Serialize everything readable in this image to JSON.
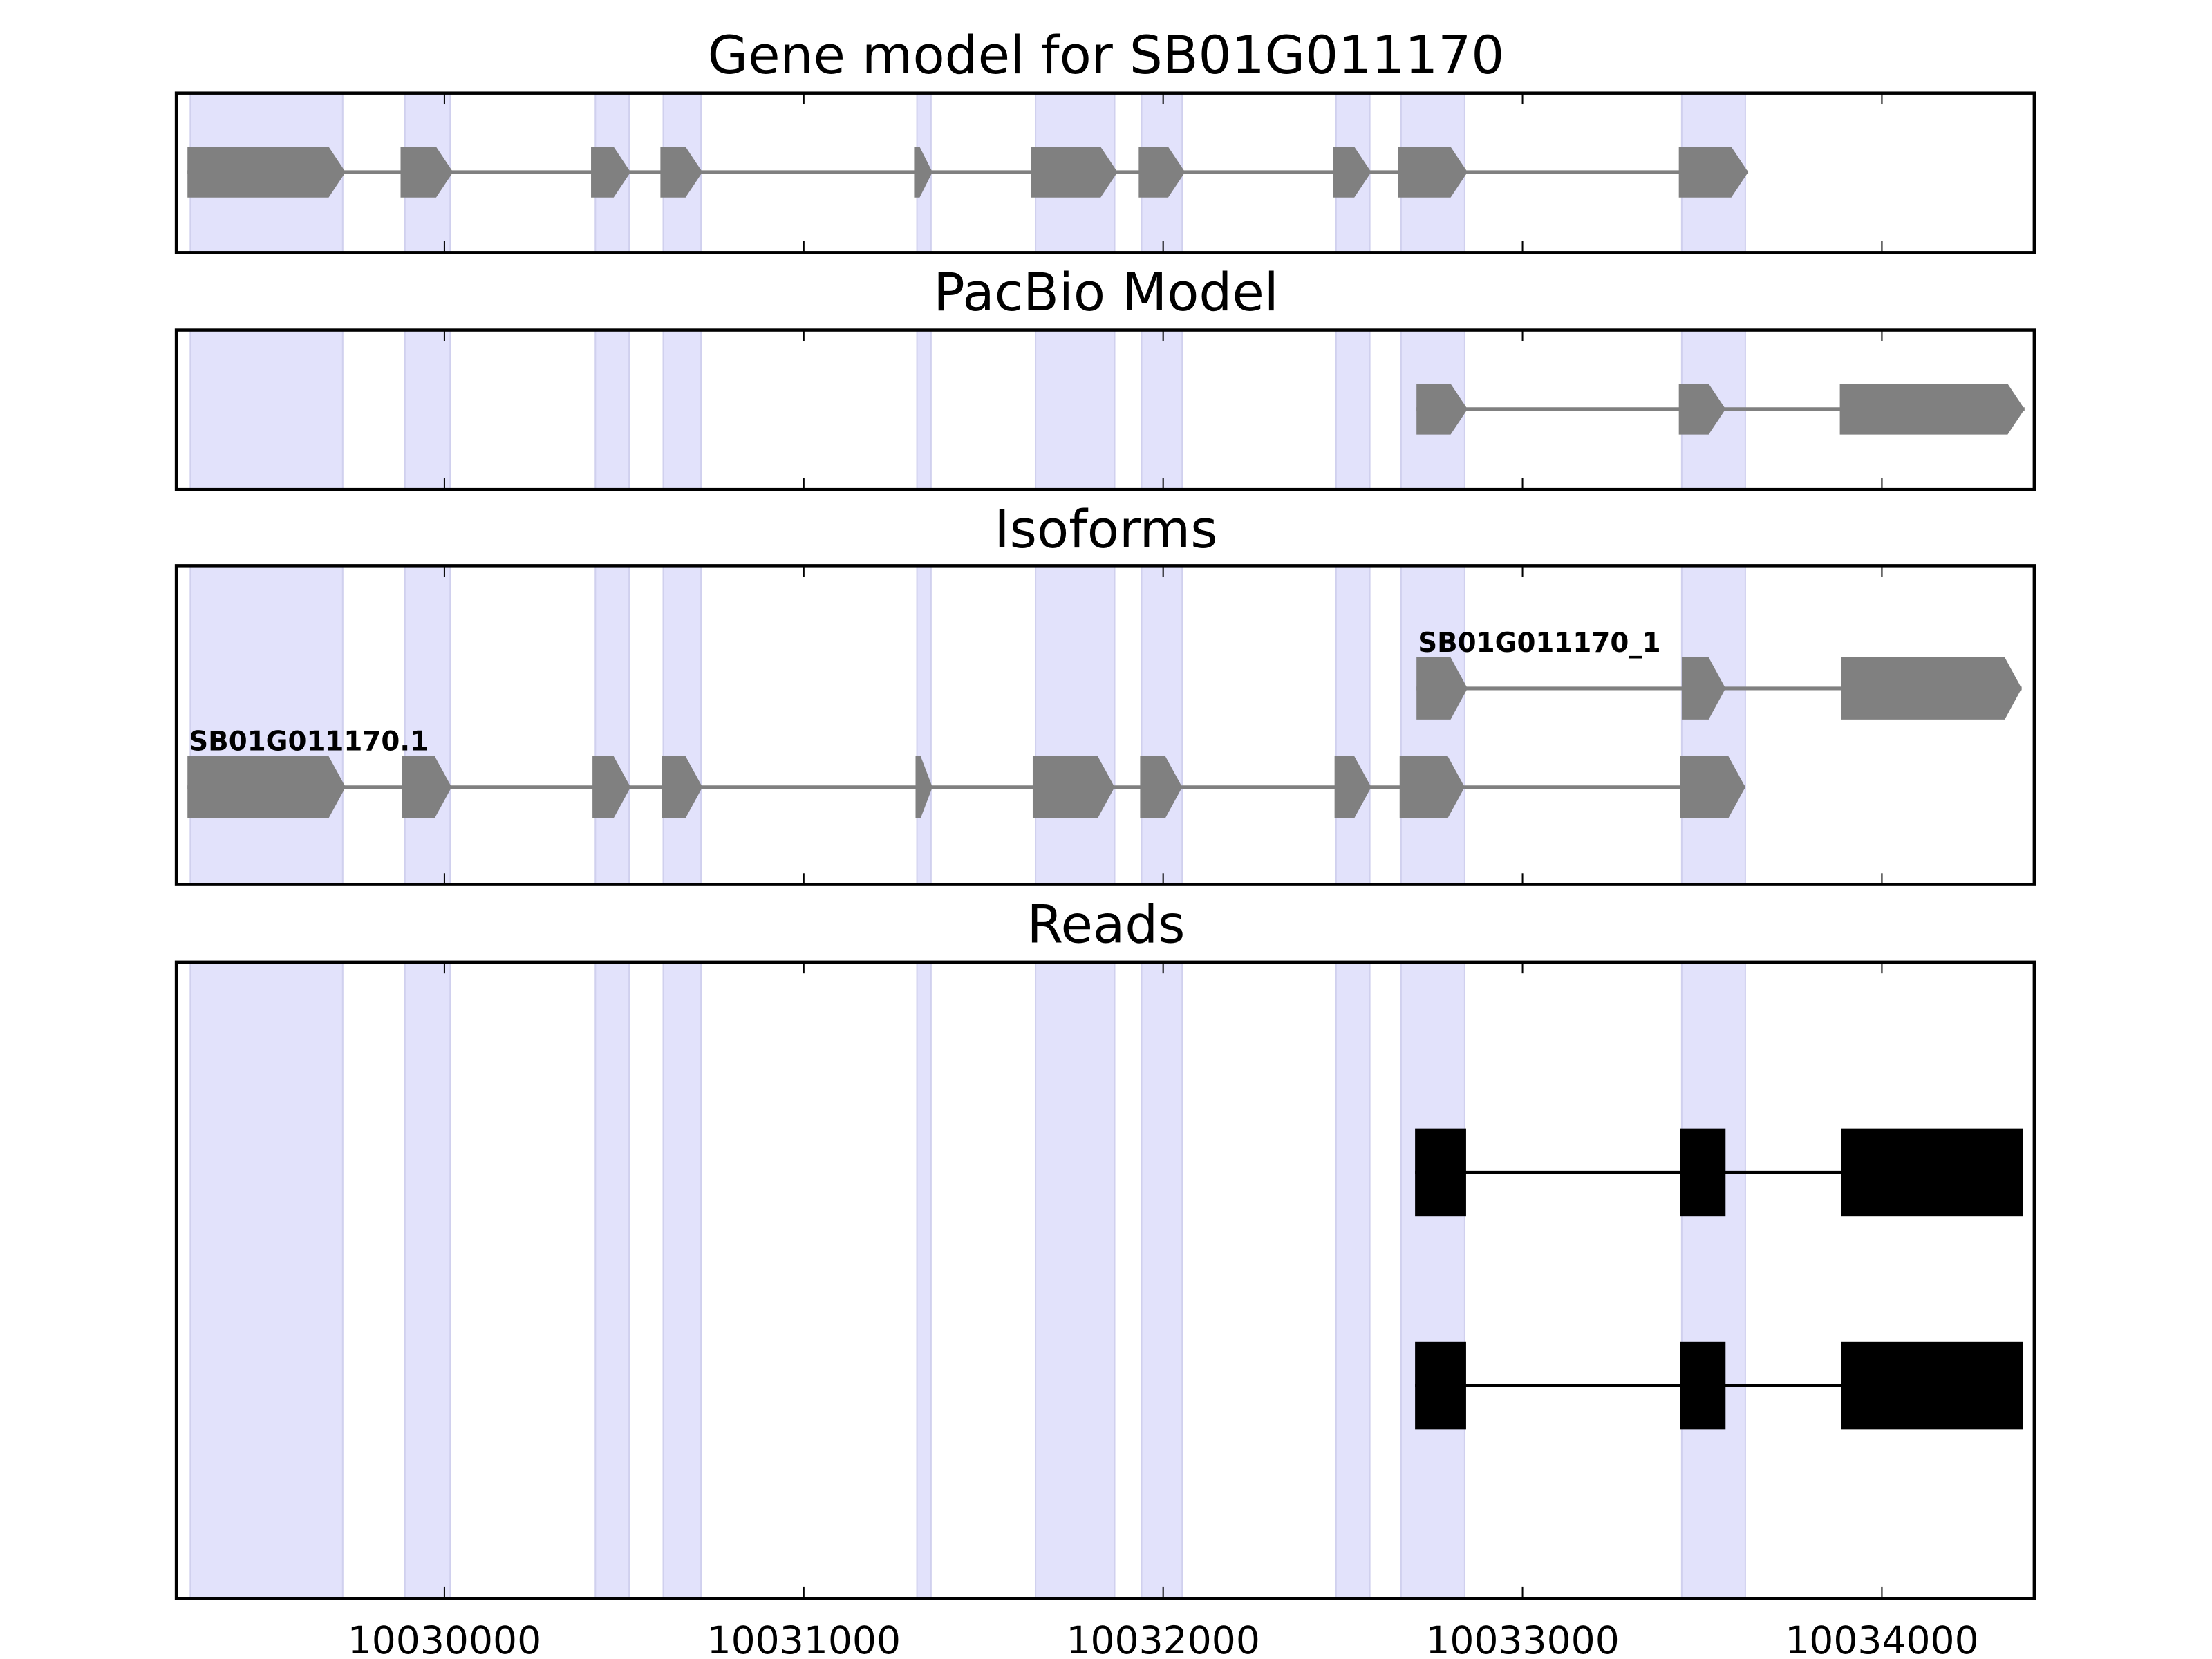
{
  "chart_data": {
    "type": "gene-track",
    "xlim": [
      10029254,
      10034424
    ],
    "xticks": [
      10030000,
      10031000,
      10032000,
      10033000,
      10034000
    ],
    "xtick_labels": [
      "10030000",
      "10031000",
      "10032000",
      "10033000",
      "10034000"
    ],
    "highlight_color": "#e2e2fb",
    "exon_color": "#808080",
    "read_color": "#000000",
    "highlight_regions": [
      [
        10029293,
        10029717
      ],
      [
        10029890,
        10030016
      ],
      [
        10030420,
        10030514
      ],
      [
        10030609,
        10030714
      ],
      [
        10031315,
        10031354
      ],
      [
        10031645,
        10031865
      ],
      [
        10031940,
        10032053
      ],
      [
        10032481,
        10032575
      ],
      [
        10032662,
        10032839
      ],
      [
        10033443,
        10033620
      ]
    ],
    "panels": [
      {
        "title": "Gene model for SB01G011170",
        "tracks": [
          {
            "label": "",
            "style": "arrow",
            "exons": [
              [
                10029285,
                10029725
              ],
              [
                10029878,
                10030024
              ],
              [
                10030408,
                10030518
              ],
              [
                10030601,
                10030718
              ],
              [
                10031307,
                10031358
              ],
              [
                10031633,
                10031873
              ],
              [
                10031932,
                10032061
              ],
              [
                10032473,
                10032579
              ],
              [
                10032654,
                10032847
              ],
              [
                10033435,
                10033628
              ]
            ]
          }
        ]
      },
      {
        "title": "PacBio Model",
        "tracks": [
          {
            "label": "",
            "style": "arrow",
            "exons": [
              [
                10032705,
                10032847
              ],
              [
                10033435,
                10033565
              ],
              [
                10033883,
                10034397
              ]
            ]
          }
        ]
      },
      {
        "title": "Isoforms",
        "tracks": [
          {
            "label": "SB01G011170_1",
            "style": "arrow",
            "exons": [
              [
                10032705,
                10032847
              ],
              [
                10033443,
                10033565
              ],
              [
                10033887,
                10034389
              ]
            ]
          },
          {
            "label": "SB01G011170.1",
            "style": "arrow",
            "exons": [
              [
                10029285,
                10029725
              ],
              [
                10029882,
                10030020
              ],
              [
                10030412,
                10030518
              ],
              [
                10030605,
                10030718
              ],
              [
                10031311,
                10031358
              ],
              [
                10031637,
                10031865
              ],
              [
                10031936,
                10032053
              ],
              [
                10032477,
                10032579
              ],
              [
                10032658,
                10032839
              ],
              [
                10033439,
                10033620
              ]
            ]
          }
        ]
      },
      {
        "title": "Reads",
        "tracks": [
          {
            "label": "",
            "style": "box",
            "exons": [
              [
                10032701,
                10032843
              ],
              [
                10033439,
                10033565
              ],
              [
                10033887,
                10034393
              ]
            ]
          },
          {
            "label": "",
            "style": "box",
            "exons": [
              [
                10032701,
                10032843
              ],
              [
                10033439,
                10033565
              ],
              [
                10033887,
                10034393
              ]
            ]
          }
        ]
      }
    ]
  }
}
